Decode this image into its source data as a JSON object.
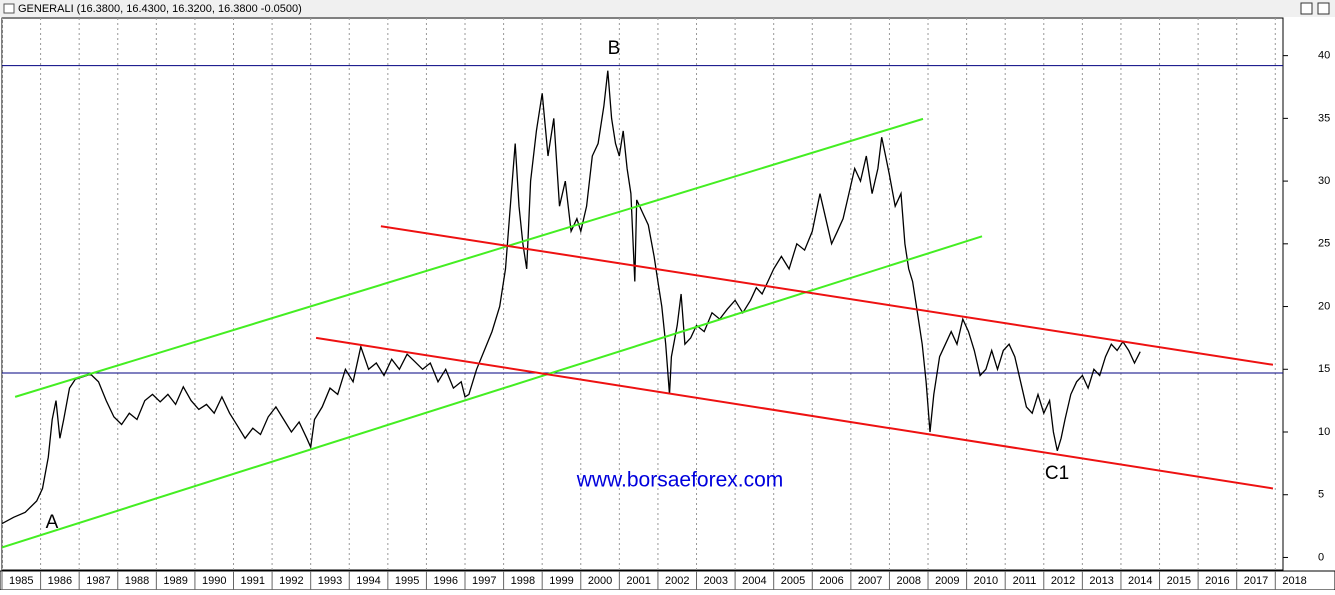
{
  "chart_data": {
    "type": "line",
    "title": "GENERALI (16.3800, 16.4300, 16.3200, 16.3800 -0.0500)",
    "watermark": "www.borsaeforex.com",
    "annotations": [
      "A",
      "B",
      "C1"
    ],
    "color": "#000000",
    "xlim": [
      1985,
      2018.2
    ],
    "ylim": [
      -1,
      43
    ],
    "xticks": [
      1985,
      1986,
      1987,
      1988,
      1989,
      1990,
      1991,
      1992,
      1993,
      1994,
      1995,
      1996,
      1997,
      1998,
      1999,
      2000,
      2001,
      2002,
      2003,
      2004,
      2005,
      2006,
      2007,
      2008,
      2009,
      2010,
      2011,
      2012,
      2013,
      2014,
      2015,
      2016,
      2017,
      2018
    ],
    "yticks": [
      0,
      5,
      10,
      15,
      20,
      25,
      30,
      35,
      40
    ],
    "grid": true,
    "hlines": [
      {
        "value": 39.2,
        "color": "#000080"
      },
      {
        "value": 14.7,
        "color": "#000080"
      }
    ],
    "trendlines": [
      {
        "color": "#44ee22",
        "x": [
          1985.34,
          2008.87
        ],
        "values": [
          12.8,
          34.96
        ]
      },
      {
        "color": "#44ee22",
        "x": [
          1985.0,
          2010.4
        ],
        "values": [
          0.8,
          25.6
        ]
      },
      {
        "color": "#ee1111",
        "x": [
          1994.82,
          2017.94
        ],
        "values": [
          26.4,
          15.36
        ]
      },
      {
        "color": "#ee1111",
        "x": [
          1993.14,
          2017.94
        ],
        "values": [
          17.5,
          5.5
        ]
      }
    ],
    "x": [
      1985.0,
      1985.3,
      1985.6,
      1985.9,
      1986.05,
      1986.2,
      1986.3,
      1986.4,
      1986.5,
      1986.6,
      1986.75,
      1986.9,
      1987.1,
      1987.3,
      1987.5,
      1987.7,
      1987.9,
      1988.1,
      1988.3,
      1988.5,
      1988.7,
      1988.9,
      1989.1,
      1989.3,
      1989.5,
      1989.7,
      1989.9,
      1990.1,
      1990.3,
      1990.5,
      1990.7,
      1990.9,
      1991.1,
      1991.3,
      1991.5,
      1991.7,
      1991.9,
      1992.1,
      1992.3,
      1992.5,
      1992.7,
      1992.9,
      1993.0,
      1993.1,
      1993.3,
      1993.5,
      1993.7,
      1993.9,
      1994.1,
      1994.3,
      1994.5,
      1994.7,
      1994.9,
      1995.1,
      1995.3,
      1995.5,
      1995.7,
      1995.9,
      1996.1,
      1996.3,
      1996.5,
      1996.7,
      1996.9,
      1997.0,
      1997.1,
      1997.3,
      1997.5,
      1997.7,
      1997.9,
      1998.05,
      1998.2,
      1998.3,
      1998.4,
      1998.5,
      1998.6,
      1998.7,
      1998.85,
      1999.0,
      1999.15,
      1999.3,
      1999.45,
      1999.6,
      1999.75,
      1999.9,
      2000.0,
      2000.15,
      2000.3,
      2000.45,
      2000.6,
      2000.7,
      2000.8,
      2000.9,
      2001.0,
      2001.1,
      2001.2,
      2001.3,
      2001.4,
      2001.45,
      2001.6,
      2001.75,
      2001.9,
      2002.0,
      2002.1,
      2002.2,
      2002.3,
      2002.35,
      2002.5,
      2002.6,
      2002.7,
      2002.85,
      2003.0,
      2003.2,
      2003.4,
      2003.6,
      2003.8,
      2004.0,
      2004.2,
      2004.4,
      2004.55,
      2004.7,
      2004.85,
      2005.0,
      2005.2,
      2005.4,
      2005.6,
      2005.8,
      2006.0,
      2006.2,
      2006.35,
      2006.5,
      2006.65,
      2006.8,
      2006.95,
      2007.1,
      2007.25,
      2007.4,
      2007.55,
      2007.7,
      2007.8,
      2007.9,
      2008.0,
      2008.15,
      2008.3,
      2008.4,
      2008.5,
      2008.6,
      2008.75,
      2008.85,
      2008.95,
      2009.05,
      2009.15,
      2009.3,
      2009.45,
      2009.6,
      2009.75,
      2009.9,
      2010.05,
      2010.2,
      2010.35,
      2010.5,
      2010.65,
      2010.8,
      2010.95,
      2011.1,
      2011.25,
      2011.4,
      2011.55,
      2011.7,
      2011.85,
      2012.0,
      2012.15,
      2012.25,
      2012.35,
      2012.45,
      2012.55,
      2012.7,
      2012.85,
      2013.0,
      2013.15,
      2013.3,
      2013.45,
      2013.6,
      2013.75,
      2013.9,
      2014.05,
      2014.2,
      2014.35,
      2014.5
    ],
    "values": [
      2.7,
      3.2,
      3.6,
      4.5,
      5.5,
      8,
      11,
      12.5,
      9.5,
      11,
      13.5,
      14.2,
      14.4,
      14.6,
      14.0,
      12.5,
      11.2,
      10.6,
      11.5,
      11.0,
      12.5,
      13.0,
      12.4,
      13.0,
      12.2,
      13.6,
      12.5,
      11.8,
      12.2,
      11.5,
      12.8,
      11.5,
      10.5,
      9.5,
      10.3,
      9.8,
      11.2,
      12.0,
      11.0,
      10.0,
      10.8,
      9.5,
      8.8,
      11.0,
      12.0,
      13.5,
      13.0,
      15.0,
      14.0,
      16.8,
      15.0,
      15.5,
      14.5,
      15.8,
      15.0,
      16.2,
      15.6,
      15.0,
      15.5,
      14.0,
      15.0,
      13.5,
      14.0,
      12.8,
      13.0,
      15.0,
      16.5,
      18.0,
      20.0,
      23.0,
      29,
      33,
      28,
      25,
      23.0,
      30,
      34,
      37,
      32,
      35,
      28,
      30,
      26,
      27,
      26,
      28,
      32,
      33,
      36,
      38.8,
      35,
      33,
      32,
      34,
      31,
      29,
      22,
      28.5,
      27.5,
      26.5,
      24,
      22,
      20,
      17,
      13,
      16,
      18.5,
      21,
      17,
      17.5,
      18.5,
      18,
      19.5,
      19,
      19.8,
      20.5,
      19.5,
      20.5,
      21.5,
      21,
      22,
      23,
      24,
      23,
      25,
      24.5,
      26,
      29,
      27,
      25,
      26,
      27,
      29,
      31,
      30,
      32,
      29,
      31,
      33.5,
      32,
      30.5,
      28,
      29,
      25,
      23,
      22,
      19,
      17,
      14,
      10,
      13,
      16,
      17,
      18,
      17,
      19,
      18,
      16.5,
      14.5,
      15,
      16.5,
      15,
      16.5,
      17,
      16,
      14,
      12,
      11.5,
      13,
      11.5,
      12.5,
      10,
      8.5,
      9.5,
      11,
      13,
      14,
      14.5,
      13.5,
      15,
      14.5,
      16,
      17,
      16.5,
      17.2,
      16.5,
      15.5,
      16.4
    ]
  }
}
